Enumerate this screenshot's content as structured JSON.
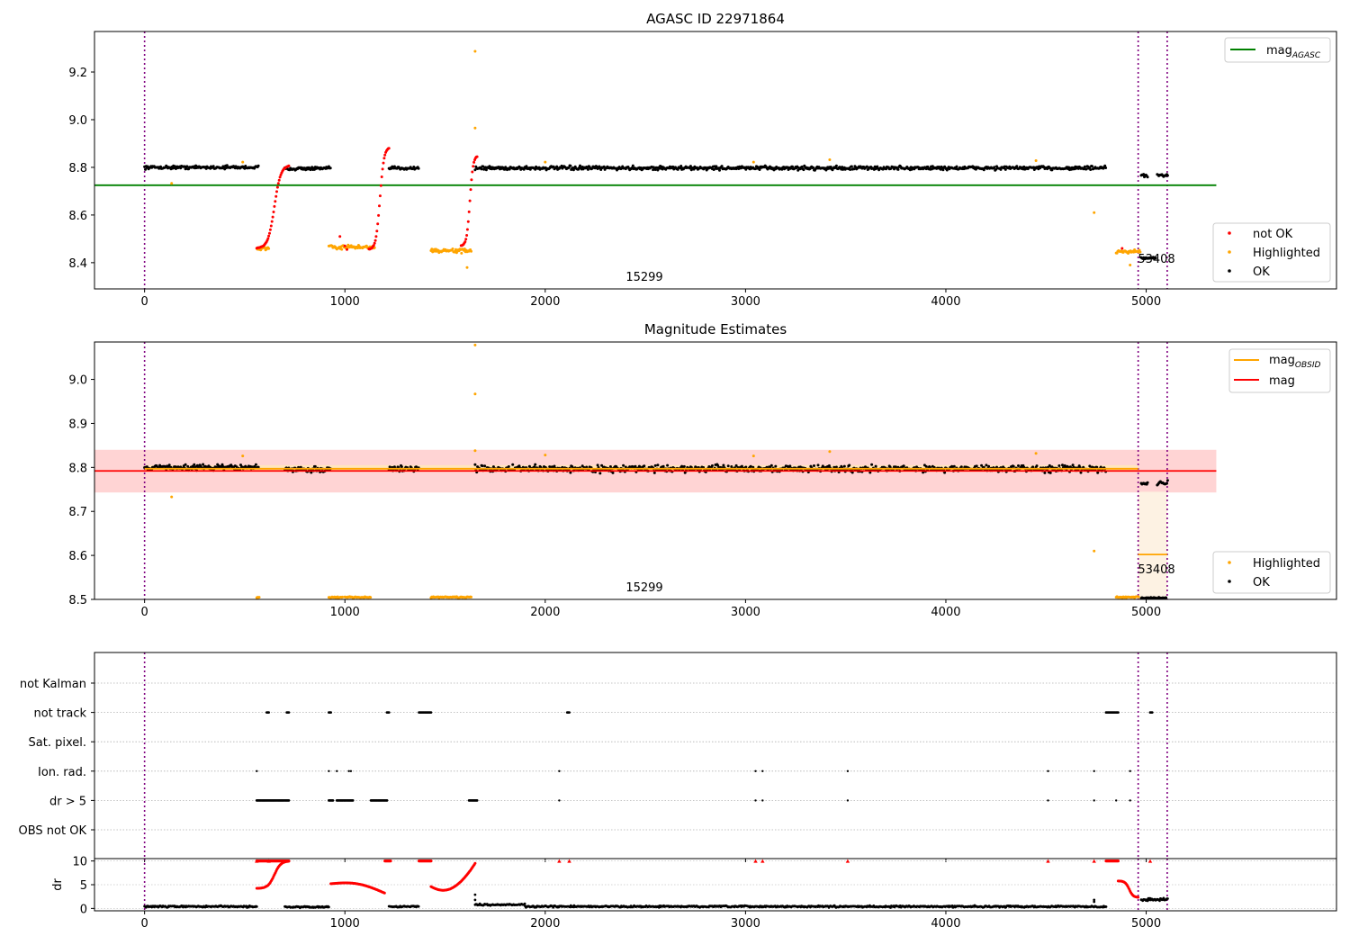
{
  "chart_data": [
    {
      "type": "scatter",
      "title": "AGASC ID 22971864",
      "xlabel": "",
      "ylabel": "",
      "xlim": [
        -250,
        5950
      ],
      "ylim": [
        8.29,
        9.37
      ],
      "xticks": [
        "0",
        "1000",
        "2000",
        "3000",
        "4000",
        "5000"
      ],
      "yticks": [
        "8.4",
        "8.6",
        "8.8",
        "9.0",
        "9.2"
      ],
      "vlines": [
        0,
        4960,
        5105
      ],
      "hline": {
        "name": "mag_AGASC",
        "value": 8.725,
        "x_range": [
          -250,
          5350
        ]
      },
      "legend_top": {
        "position": "upper right",
        "entries": [
          {
            "label_main": "mag",
            "label_sub": "AGASC",
            "color": "#008000"
          }
        ]
      },
      "legend_bottom": {
        "position": "lower right",
        "entries": [
          {
            "label": "not OK",
            "color": "#ff0000"
          },
          {
            "label": "Highlighted",
            "color": "#ffa500"
          },
          {
            "label": "OK",
            "color": "#000000"
          }
        ]
      },
      "annotations": [
        {
          "text": "15299",
          "x": 2480,
          "y": 8.32
        },
        {
          "text": "53408",
          "x": 5035,
          "y": 8.41
        }
      ],
      "series": [
        {
          "name": "OK",
          "color": "#000000",
          "segments": [
            {
              "x": [
                0,
                570
              ],
              "y": 8.8,
              "jitter": 0.01
            },
            {
              "x": [
                700,
                930
              ],
              "y": 8.795,
              "jitter": 0.01
            },
            {
              "x": [
                1220,
                1370
              ],
              "y": 8.797,
              "jitter": 0.01
            },
            {
              "x": [
                1650,
                4800
              ],
              "y": 8.797,
              "jitter": 0.012
            },
            {
              "x": [
                4975,
                5010
              ],
              "y": 8.765,
              "jitter": 0.01
            },
            {
              "x": [
                5055,
                5110
              ],
              "y": 8.765,
              "jitter": 0.01
            },
            {
              "x": [
                4975,
                5050
              ],
              "y": 8.42,
              "jitter": 0.006
            }
          ]
        },
        {
          "name": "Highlighted",
          "color": "#ffa500",
          "segments": [
            {
              "x": [
                560,
                620
              ],
              "y": 8.46,
              "jitter": 0.012
            },
            {
              "x": [
                920,
                1150
              ],
              "y": 8.465,
              "jitter": 0.012
            },
            {
              "x": [
                1430,
                1630
              ],
              "y": 8.45,
              "jitter": 0.012
            },
            {
              "x": [
                4850,
                4970
              ],
              "y": 8.445,
              "jitter": 0.012
            }
          ],
          "points": [
            [
              135,
              8.733
            ],
            [
              490,
              8.822
            ],
            [
              1650,
              9.287
            ],
            [
              1650,
              8.965
            ],
            [
              1610,
              8.38
            ],
            [
              4740,
              8.61
            ],
            [
              4920,
              8.39
            ],
            [
              2000,
              8.822
            ],
            [
              3040,
              8.822
            ],
            [
              3420,
              8.832
            ],
            [
              4450,
              8.828
            ]
          ]
        },
        {
          "name": "not OK",
          "color": "#ff0000",
          "curves": [
            {
              "x": [
                560,
                720
              ],
              "y0": 8.46,
              "y1": 8.81
            },
            {
              "x": [
                1120,
                1220
              ],
              "y0": 8.455,
              "y1": 8.885
            },
            {
              "x": [
                1580,
                1660
              ],
              "y0": 8.47,
              "y1": 8.85
            }
          ],
          "points": [
            [
              975,
              8.51
            ],
            [
              1000,
              8.47
            ],
            [
              1010,
              8.455
            ],
            [
              4880,
              8.46
            ]
          ]
        }
      ]
    },
    {
      "type": "scatter",
      "title": "Magnitude Estimates",
      "xlabel": "",
      "ylabel": "",
      "xlim": [
        -250,
        5950
      ],
      "ylim": [
        8.5,
        9.085
      ],
      "xticks": [
        "0",
        "1000",
        "2000",
        "3000",
        "4000",
        "5000"
      ],
      "yticks": [
        "8.5",
        "8.6",
        "8.7",
        "8.8",
        "8.9",
        "9.0"
      ],
      "vlines": [
        0,
        4960,
        5105
      ],
      "bands": [
        {
          "name": "mag band",
          "color": "#ffcccc",
          "x_range": [
            -250,
            5350
          ],
          "y_range": [
            8.743,
            8.84
          ]
        },
        {
          "name": "mag_OBSID band 15299",
          "color": "#ffe9b8",
          "x_range": [
            0,
            4960
          ],
          "y_range": [
            8.79,
            8.805
          ]
        },
        {
          "name": "mag_OBSID band 53408",
          "color": "#fdf0de",
          "x_range": [
            4960,
            5105
          ],
          "y_range": [
            8.5,
            8.745
          ]
        }
      ],
      "lines": [
        {
          "name": "mag",
          "color": "#ff0000",
          "value": 8.792,
          "x_range": [
            -250,
            5350
          ]
        },
        {
          "name": "mag_OBSID",
          "color": "#ffa500",
          "value": 8.797,
          "x_range": [
            0,
            4960
          ]
        },
        {
          "name": "mag_OBSID",
          "color": "#ffa500",
          "value": 8.602,
          "x_range": [
            4960,
            5105
          ]
        }
      ],
      "legend_top": {
        "position": "upper right",
        "entries": [
          {
            "label_main": "mag",
            "label_sub": "OBSID",
            "color": "#ffa500"
          },
          {
            "label_main": "mag",
            "label_sub": "",
            "color": "#ff0000"
          }
        ]
      },
      "legend_bottom": {
        "position": "lower right",
        "entries": [
          {
            "label": "Highlighted",
            "color": "#ffa500"
          },
          {
            "label": "OK",
            "color": "#000000"
          }
        ]
      },
      "annotations": [
        {
          "text": "15299",
          "x": 2480,
          "y": 8.518
        },
        {
          "text": "53408",
          "x": 5035,
          "y": 8.565
        }
      ],
      "series": [
        {
          "name": "OK",
          "color": "#000000",
          "segments": [
            {
              "x": [
                0,
                570
              ],
              "y": 8.8,
              "jitter": 0.009
            },
            {
              "x": [
                700,
                930
              ],
              "y": 8.795,
              "jitter": 0.009
            },
            {
              "x": [
                1220,
                1370
              ],
              "y": 8.797,
              "jitter": 0.009
            },
            {
              "x": [
                1650,
                4800
              ],
              "y": 8.797,
              "jitter": 0.011
            },
            {
              "x": [
                4975,
                5010
              ],
              "y": 8.765,
              "jitter": 0.008
            },
            {
              "x": [
                5055,
                5110
              ],
              "y": 8.765,
              "jitter": 0.008
            },
            {
              "x": [
                4975,
                5100
              ],
              "y": 8.503,
              "jitter": 0.002
            }
          ]
        },
        {
          "name": "Highlighted",
          "color": "#ffa500",
          "segments": [
            {
              "x": [
                560,
                575
              ],
              "y": 8.505,
              "jitter": 0.002
            },
            {
              "x": [
                920,
                990
              ],
              "y": 8.505,
              "jitter": 0.002
            },
            {
              "x": [
                1000,
                1130
              ],
              "y": 8.505,
              "jitter": 0.002
            },
            {
              "x": [
                1430,
                1630
              ],
              "y": 8.505,
              "jitter": 0.002
            },
            {
              "x": [
                4850,
                4965
              ],
              "y": 8.505,
              "jitter": 0.002
            }
          ],
          "points": [
            [
              135,
              8.733
            ],
            [
              490,
              8.826
            ],
            [
              1650,
              9.078
            ],
            [
              1650,
              8.967
            ],
            [
              1650,
              8.838
            ],
            [
              4740,
              8.61
            ],
            [
              2000,
              8.828
            ],
            [
              3040,
              8.826
            ],
            [
              3420,
              8.836
            ],
            [
              4450,
              8.832
            ]
          ]
        }
      ]
    },
    {
      "type": "scatter",
      "title": "",
      "xlabel": "",
      "ylabel": "",
      "xlim": [
        -250,
        5950
      ],
      "yticks": [
        "not Kalman",
        "not track",
        "Sat. pixel.",
        "Ion. rad.",
        "dr > 5",
        "OBS not OK"
      ],
      "vlines": [
        0,
        4960,
        5105
      ],
      "rows": [
        {
          "label": "not Kalman",
          "points": []
        },
        {
          "label": "not track",
          "ranges": [
            [
              610,
              620
            ],
            [
              710,
              720
            ],
            [
              920,
              930
            ],
            [
              1210,
              1220
            ],
            [
              1370,
              1430
            ],
            [
              2110,
              2120
            ],
            [
              4800,
              4860
            ],
            [
              5020,
              5030
            ]
          ]
        },
        {
          "label": "Sat. pixel.",
          "points": []
        },
        {
          "label": "Ion. rad.",
          "points": [
            560,
            920,
            960,
            1020,
            1030,
            2070,
            3050,
            3085,
            3510,
            4510,
            4740,
            4920
          ]
        },
        {
          "label": "dr > 5",
          "ranges": [
            [
              560,
              720
            ],
            [
              920,
              940
            ],
            [
              960,
              1040
            ],
            [
              1130,
              1210
            ],
            [
              1620,
              1660
            ]
          ],
          "points": [
            2070,
            3050,
            3085,
            3510,
            4510,
            4740,
            4850,
            4920
          ]
        },
        {
          "label": "OBS not OK",
          "points": []
        }
      ]
    },
    {
      "type": "scatter",
      "title": "",
      "xlabel": "",
      "ylabel": "dr",
      "xlim": [
        -250,
        5950
      ],
      "ylim": [
        -0.5,
        10.5
      ],
      "yticks": [
        "0",
        "5",
        "10"
      ],
      "vlines": [
        0,
        4960,
        5105
      ],
      "series": [
        {
          "name": "OK",
          "color": "#000000",
          "segments": [
            {
              "x": [
                0,
                560
              ],
              "y": 0.4,
              "jitter": 0.25
            },
            {
              "x": [
                700,
                920
              ],
              "y": 0.3,
              "jitter": 0.2
            },
            {
              "x": [
                1220,
                1370
              ],
              "y": 0.4,
              "jitter": 0.2
            },
            {
              "x": [
                1650,
                1900
              ],
              "y": 0.8,
              "jitter": 0.25
            },
            {
              "x": [
                1900,
                4800
              ],
              "y": 0.4,
              "jitter": 0.25
            }
          ],
          "points": [
            [
              1650,
              2.9
            ],
            [
              1650,
              1.8
            ],
            [
              4740,
              1.8
            ],
            [
              4740,
              1.4
            ]
          ]
        },
        {
          "name": "not OK",
          "color": "#ff0000",
          "curves": [
            {
              "x": [
                560,
                720
              ],
              "y0": 4.2,
              "y1": 10
            },
            {
              "x": [
                930,
                1200
              ],
              "y0": 5.2,
              "y1": 3.2,
              "bump": true
            },
            {
              "x": [
                1430,
                1650
              ],
              "y0": 4.6,
              "y1": 9.5,
              "dip": true
            },
            {
              "x": [
                4860,
                4960
              ],
              "y0": 5.8,
              "y1": 2.3
            }
          ],
          "clip10": [
            [
              560,
              720
            ],
            [
              1200,
              1230
            ],
            [
              1370,
              1430
            ],
            [
              4800,
              4860
            ]
          ],
          "points_at_10": [
            560,
            620,
            2070,
            2120,
            3050,
            3085,
            3510,
            4510,
            4740,
            5020
          ]
        },
        {
          "name": "late",
          "color": "#000000",
          "segments": [
            {
              "x": [
                4975,
                5110
              ],
              "y": 1.9,
              "jitter": 0.4
            }
          ]
        }
      ]
    }
  ]
}
